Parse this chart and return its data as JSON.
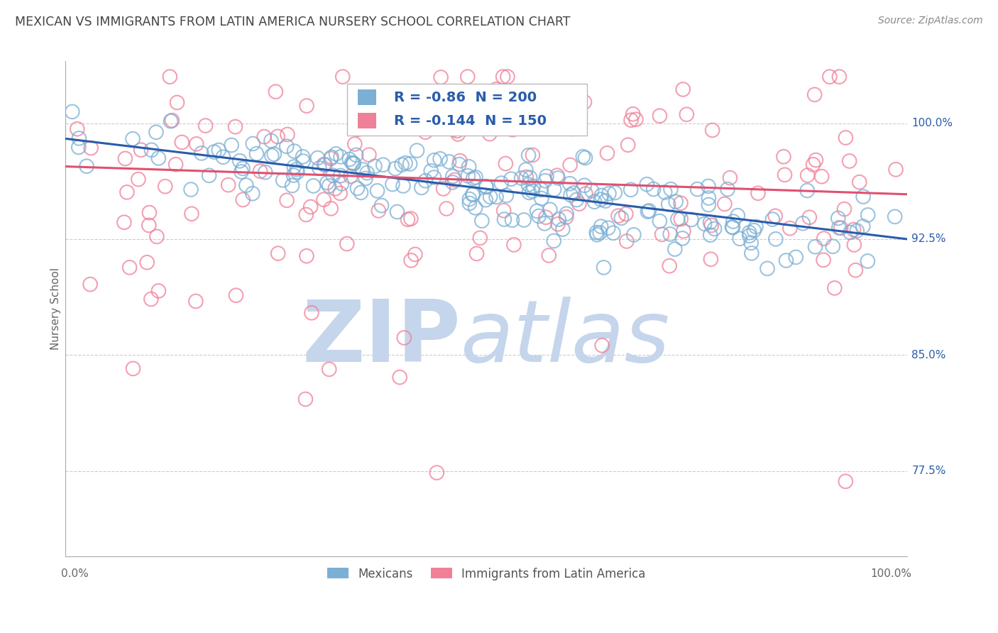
{
  "title": "MEXICAN VS IMMIGRANTS FROM LATIN AMERICA NURSERY SCHOOL CORRELATION CHART",
  "source": "Source: ZipAtlas.com",
  "ylabel": "Nursery School",
  "y_tick_labels": [
    "100.0%",
    "92.5%",
    "85.0%",
    "77.5%"
  ],
  "y_tick_values": [
    1.0,
    0.925,
    0.85,
    0.775
  ],
  "ylim": [
    0.72,
    1.04
  ],
  "xlim": [
    0.0,
    1.0
  ],
  "blue_R": -0.86,
  "blue_N": 200,
  "pink_R": -0.144,
  "pink_N": 150,
  "blue_color": "#7bafd4",
  "blue_line_color": "#2a5caa",
  "pink_color": "#f08098",
  "pink_line_color": "#e05070",
  "watermark_ZIP": "ZIP",
  "watermark_atlas": "atlas",
  "watermark_color_ZIP": "#c5d5eb",
  "watermark_color_atlas": "#c5d5eb",
  "background_color": "#ffffff",
  "grid_color": "#cccccc",
  "title_color": "#444444",
  "axis_label_color": "#2a5caa",
  "source_color": "#888888",
  "legend_color": "#2a5caa",
  "blue_seed": 42,
  "pink_seed": 99,
  "blue_line_intercept": 0.99,
  "blue_line_slope": -0.065,
  "pink_line_intercept": 0.972,
  "pink_line_slope": -0.018
}
